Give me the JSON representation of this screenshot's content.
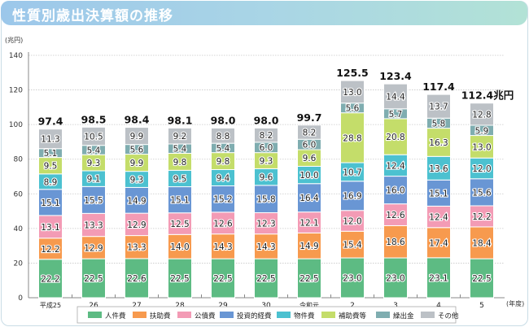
{
  "title": "性質別歳出決算額の推移",
  "chart_data": {
    "type": "bar",
    "stacked": true,
    "title": "性質別歳出決算額の推移",
    "ylabel": "(兆円)",
    "xlabel": "(年度)",
    "ylim": [
      0,
      140
    ],
    "yticks": [
      0,
      20,
      40,
      60,
      80,
      100,
      120,
      140
    ],
    "grid": true,
    "categories": [
      "平成25",
      "26",
      "27",
      "28",
      "29",
      "30",
      "令和元",
      "2",
      "3",
      "4",
      "5"
    ],
    "totals": [
      "97.4",
      "98.5",
      "98.4",
      "98.1",
      "98.0",
      "98.0",
      "99.7",
      "125.5",
      "123.4",
      "117.4",
      "112.4兆円"
    ],
    "legend_position": "bottom",
    "series": [
      {
        "name": "人件費",
        "color": "#5dbb83",
        "values": [
          22.2,
          22.5,
          22.6,
          22.5,
          22.5,
          22.5,
          22.5,
          23.0,
          23.0,
          23.1,
          22.5
        ]
      },
      {
        "name": "扶助費",
        "color": "#f79a4e",
        "values": [
          12.2,
          12.9,
          13.3,
          14.0,
          14.3,
          14.3,
          14.9,
          15.4,
          18.6,
          17.4,
          18.4
        ]
      },
      {
        "name": "公債費",
        "color": "#f39bb5",
        "values": [
          13.1,
          13.3,
          12.9,
          12.5,
          12.6,
          12.3,
          12.1,
          12.0,
          12.6,
          12.4,
          12.2
        ]
      },
      {
        "name": "投資的経費",
        "color": "#6996d4",
        "values": [
          15.1,
          15.5,
          14.9,
          15.1,
          15.2,
          15.8,
          16.4,
          16.9,
          16.0,
          15.1,
          15.6
        ]
      },
      {
        "name": "物件費",
        "color": "#4cc1d0",
        "values": [
          8.9,
          9.1,
          9.3,
          9.5,
          9.4,
          9.6,
          10.0,
          10.7,
          12.4,
          13.6,
          12.0
        ]
      },
      {
        "name": "補助費等",
        "color": "#c4dd6a",
        "values": [
          9.5,
          9.3,
          9.9,
          9.8,
          9.8,
          9.3,
          9.6,
          28.8,
          20.8,
          16.3,
          13.0
        ]
      },
      {
        "name": "繰出金",
        "color": "#7fadb0",
        "values": [
          5.1,
          5.4,
          5.6,
          5.4,
          5.4,
          6.0,
          6.0,
          5.6,
          5.7,
          5.8,
          5.9
        ]
      },
      {
        "name": "その他",
        "color": "#bcc1c6",
        "values": [
          11.3,
          10.5,
          9.9,
          9.2,
          8.8,
          8.2,
          8.2,
          13.0,
          14.4,
          13.7,
          12.8
        ]
      }
    ]
  }
}
